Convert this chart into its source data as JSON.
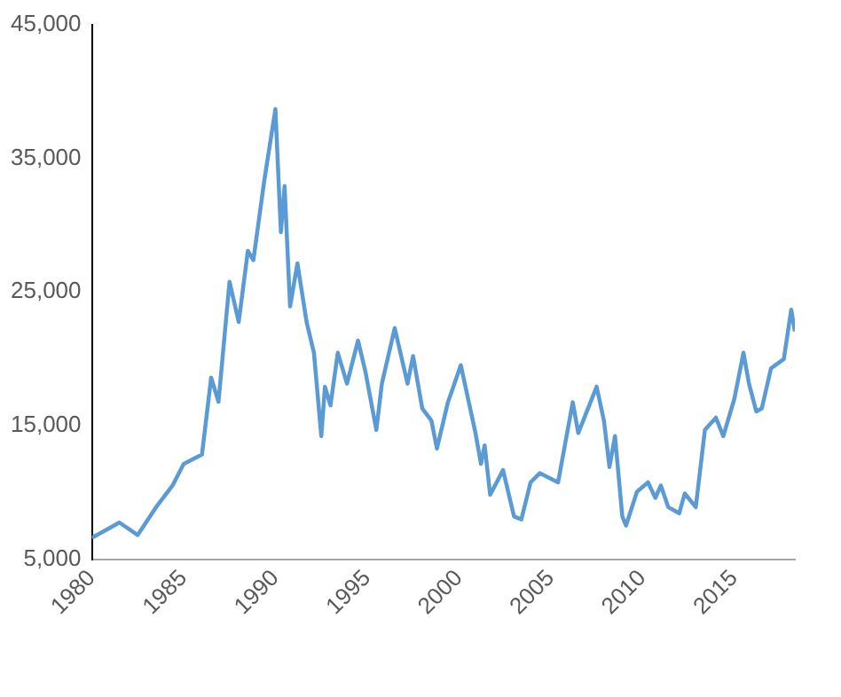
{
  "chart_data": {
    "type": "line",
    "x": [
      1980.0,
      1981.5,
      1982.5,
      1983.5,
      1984.4,
      1985.0,
      1986.0,
      1986.5,
      1986.9,
      1987.5,
      1988.0,
      1988.5,
      1988.8,
      1989.4,
      1990.0,
      1990.3,
      1990.5,
      1990.8,
      1991.2,
      1991.7,
      1992.1,
      1992.5,
      1992.7,
      1993.0,
      1993.4,
      1993.9,
      1994.5,
      1994.9,
      1995.5,
      1995.8,
      1996.5,
      1997.2,
      1997.5,
      1998.0,
      1998.5,
      1998.8,
      1999.4,
      2000.1,
      2000.9,
      2001.2,
      2001.4,
      2001.7,
      2002.4,
      2003.0,
      2003.4,
      2003.9,
      2004.4,
      2005.4,
      2006.2,
      2006.5,
      2007.5,
      2007.9,
      2008.2,
      2008.5,
      2008.9,
      2009.1,
      2009.7,
      2010.3,
      2010.7,
      2011.0,
      2011.4,
      2012.0,
      2012.3,
      2012.9,
      2013.4,
      2014.0,
      2014.4,
      2015.0,
      2015.5,
      2015.8,
      2016.2,
      2016.5,
      2017.0,
      2017.7,
      2018.1,
      2018.3
    ],
    "series": [
      {
        "color": "#5b9bd5",
        "values": [
          6620,
          7770,
          6840,
          8920,
          10540,
          12150,
          12850,
          18600,
          16800,
          25760,
          22760,
          28070,
          27380,
          33380,
          38670,
          29470,
          32920,
          23920,
          27140,
          22760,
          20460,
          14230,
          17920,
          16530,
          20460,
          18150,
          21370,
          19080,
          14690,
          18150,
          22300,
          18150,
          20220,
          16300,
          15380,
          13300,
          16760,
          19530,
          14460,
          12160,
          13540,
          9840,
          11690,
          8230,
          8000,
          10770,
          11460,
          10770,
          16760,
          14460,
          17920,
          15380,
          11920,
          14230,
          8230,
          7540,
          10080,
          10770,
          9610,
          10540,
          8920,
          8460,
          9940,
          8920,
          14690,
          15610,
          14230,
          17000,
          20460,
          18150,
          16070,
          16300,
          19300,
          19990,
          23680,
          22070
        ]
      }
    ],
    "xlim": [
      1980,
      2018.3
    ],
    "xticks": [
      1980,
      1985,
      1990,
      1995,
      2000,
      2005,
      2010,
      2015
    ],
    "ylim": [
      5000,
      45000
    ],
    "yticks": [
      {
        "value": 5000,
        "label": "5,000"
      },
      {
        "value": 15000,
        "label": "15,000"
      },
      {
        "value": 25000,
        "label": "25,000"
      },
      {
        "value": 35000,
        "label": "35,000"
      },
      {
        "value": 45000,
        "label": "45,000"
      }
    ],
    "grid": false,
    "legend": false,
    "marker": "none",
    "line_style": "solid"
  }
}
